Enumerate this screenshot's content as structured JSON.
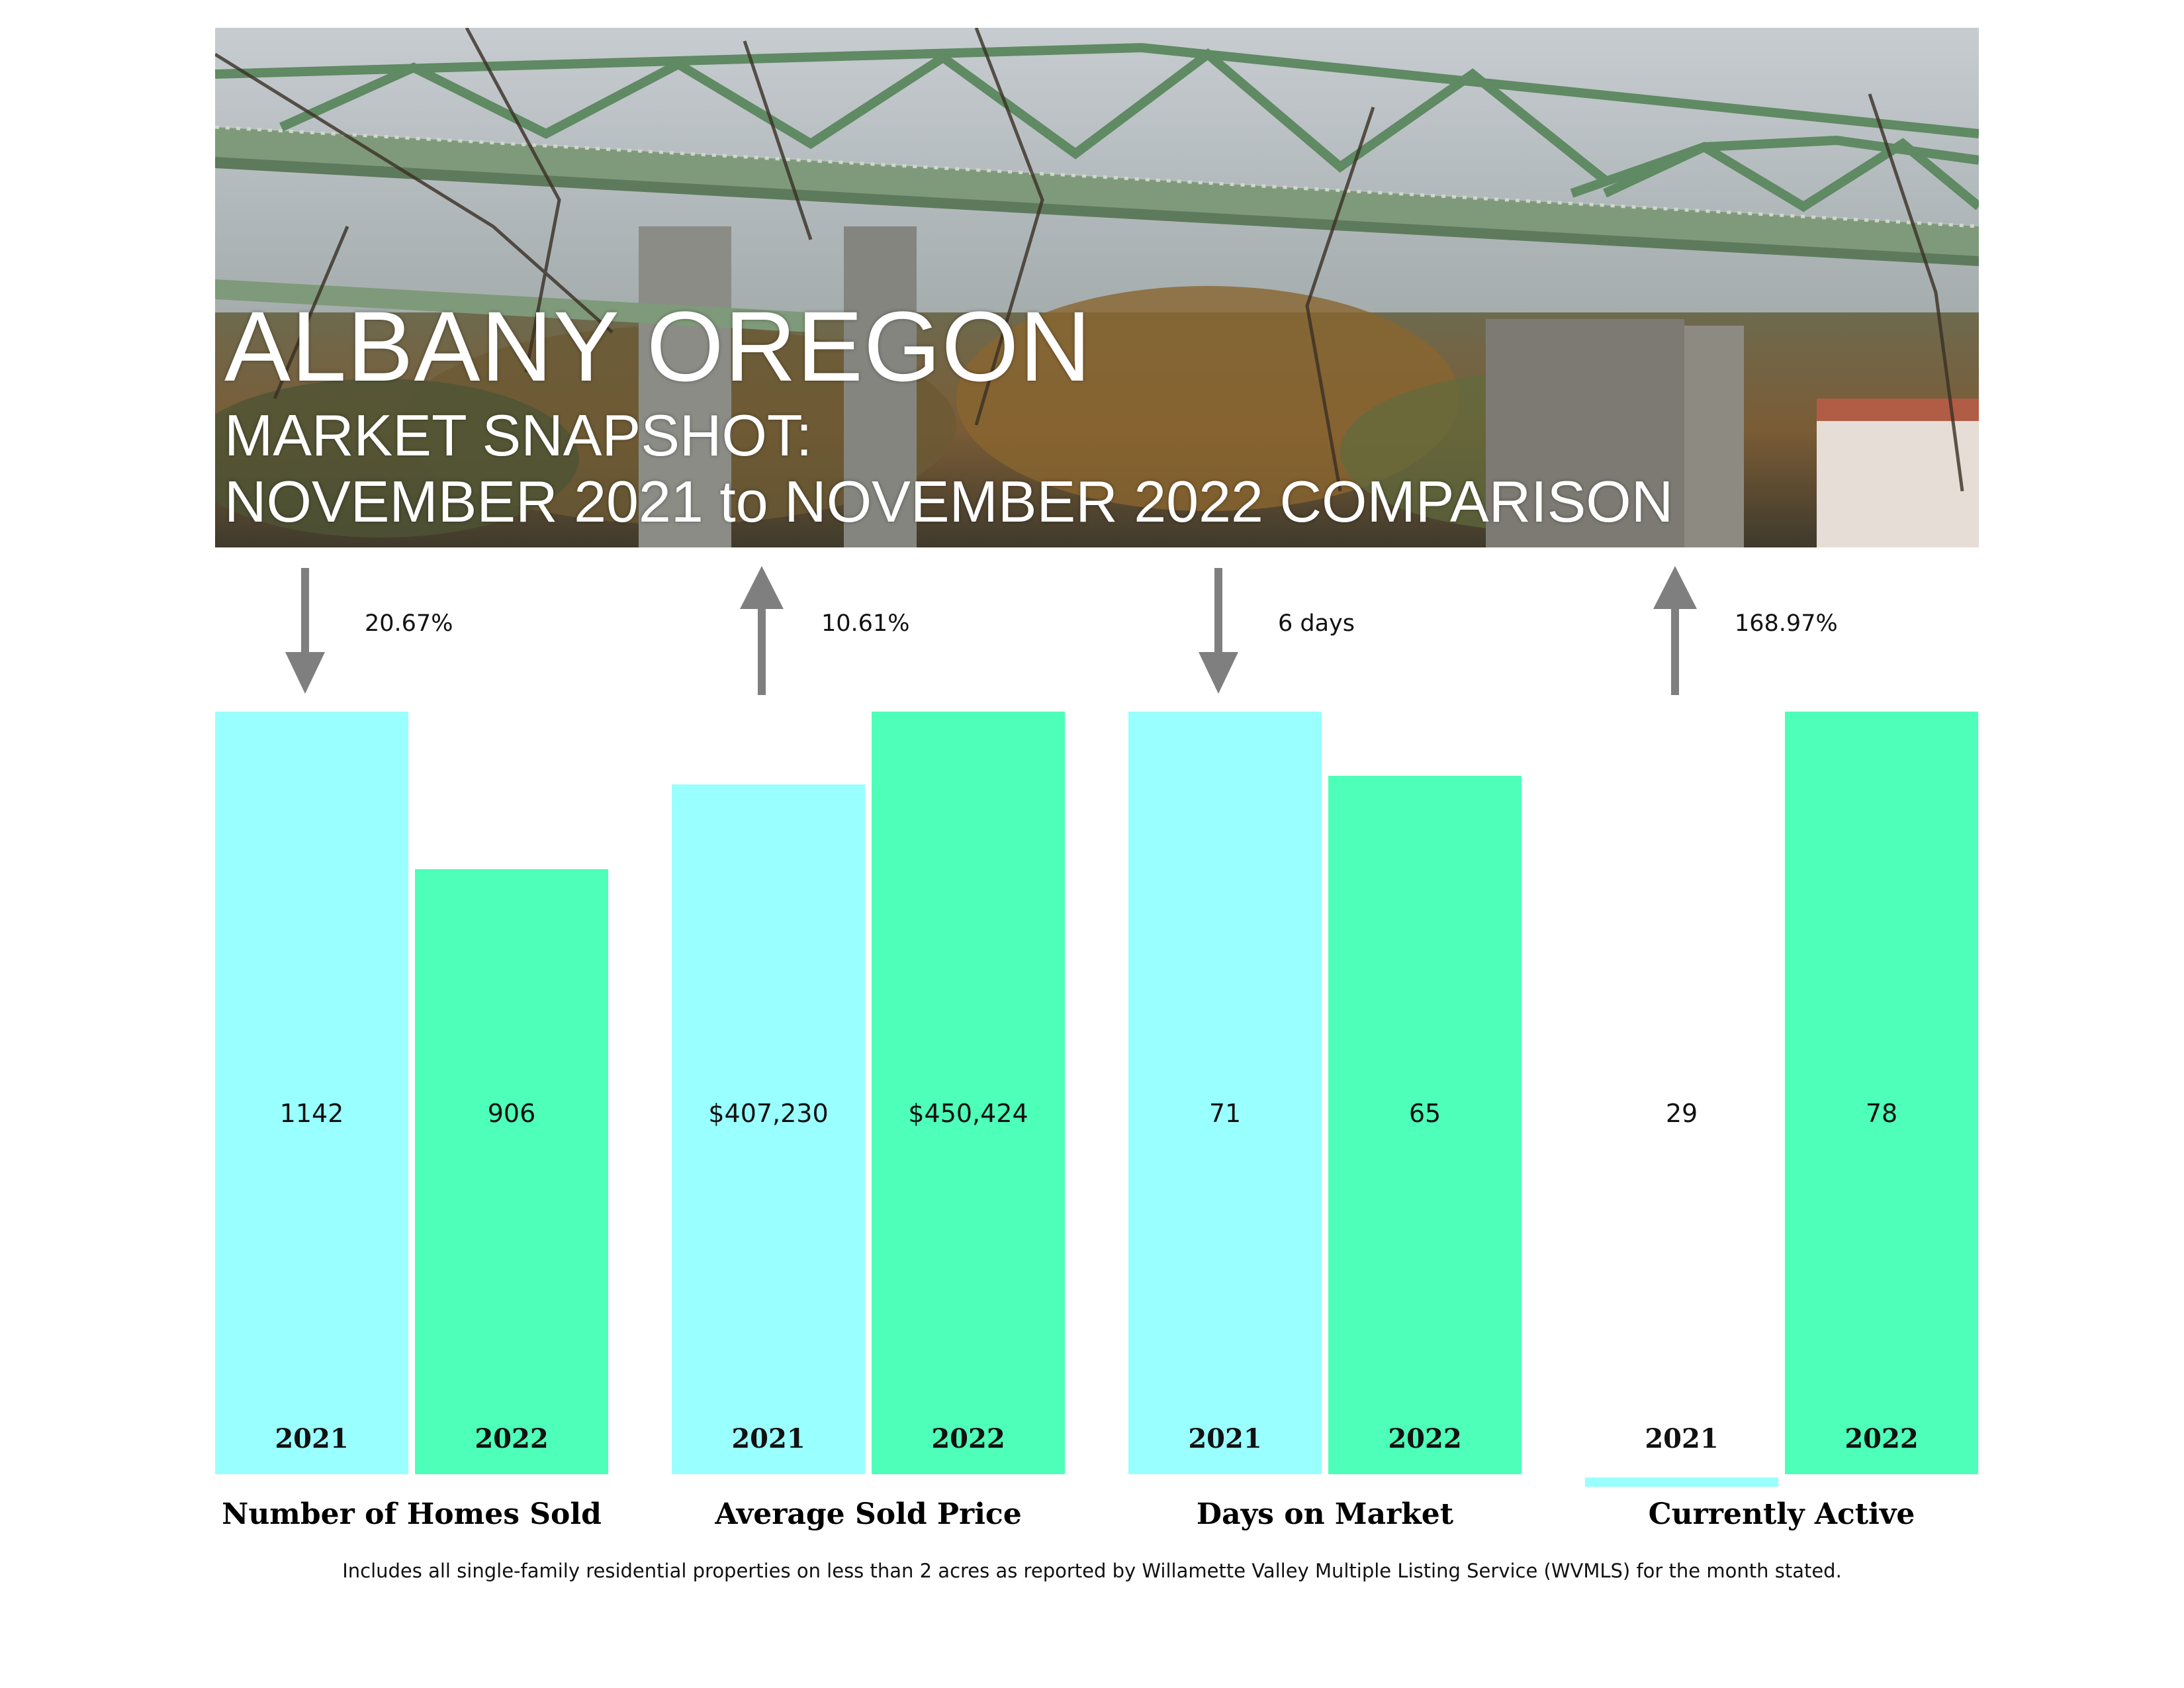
{
  "header": {
    "title": "ALBANY OREGON",
    "subtitle_line1": "MARKET SNAPSHOT:",
    "subtitle_line2": "NOVEMBER 2021 to NOVEMBER 2022 COMPARISON"
  },
  "colors": {
    "bar_2021": "#99ffff",
    "bar_2022": "#4dffb8",
    "arrow": "#7f7f7f"
  },
  "chart_data": {
    "type": "bar",
    "series": [
      {
        "name": "2021"
      },
      {
        "name": "2022"
      }
    ],
    "groups": [
      {
        "label": "Number of Homes Sold",
        "change_label": "20.67%",
        "direction": "down",
        "values": [
          1142,
          906
        ],
        "value_labels": [
          "1142",
          "906"
        ],
        "years": [
          "2021",
          "2022"
        ]
      },
      {
        "label": "Average Sold Price",
        "change_label": "10.61%",
        "direction": "up",
        "values": [
          407230,
          450424
        ],
        "value_labels": [
          "$407,230",
          "$450,424"
        ],
        "years": [
          "2021",
          "2022"
        ]
      },
      {
        "label": "Days on Market",
        "change_label": "6 days",
        "direction": "down",
        "values": [
          71,
          65
        ],
        "value_labels": [
          "71",
          "65"
        ],
        "years": [
          "2021",
          "2022"
        ]
      },
      {
        "label": "Currently Active",
        "change_label": "168.97%",
        "direction": "up",
        "values": [
          29,
          78
        ],
        "value_labels": [
          "29",
          "78"
        ],
        "years": [
          "2021",
          "2022"
        ]
      }
    ]
  },
  "footnote": "Includes all single-family residential properties on less than 2 acres as reported by Willamette Valley Multiple Listing Service (WVMLS) for the month stated."
}
